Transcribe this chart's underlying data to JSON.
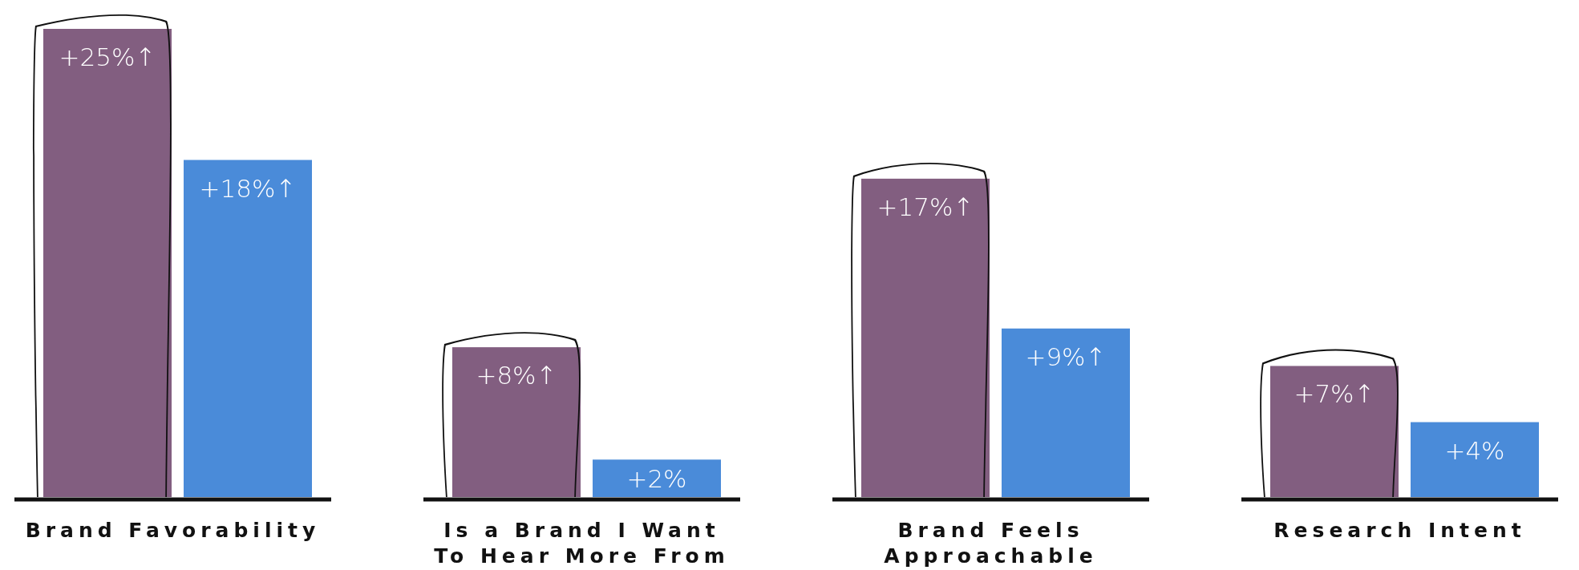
{
  "chart_data": {
    "type": "bar",
    "categories": [
      "Brand Favorability",
      "Is a Brand I Want To Hear More From",
      "Brand Feels Approachable",
      "Research Intent"
    ],
    "series": [
      {
        "color": "#825e80",
        "values": [
          25,
          8,
          17,
          7
        ],
        "value_labels": [
          "+25%↑",
          "+8%↑",
          "+17%↑",
          "+7%↑"
        ]
      },
      {
        "color": "#4a8bd9",
        "values": [
          18,
          2,
          9,
          4
        ],
        "value_labels": [
          "+18%↑",
          "+2%",
          "+9%↑",
          "+4%"
        ]
      }
    ]
  }
}
